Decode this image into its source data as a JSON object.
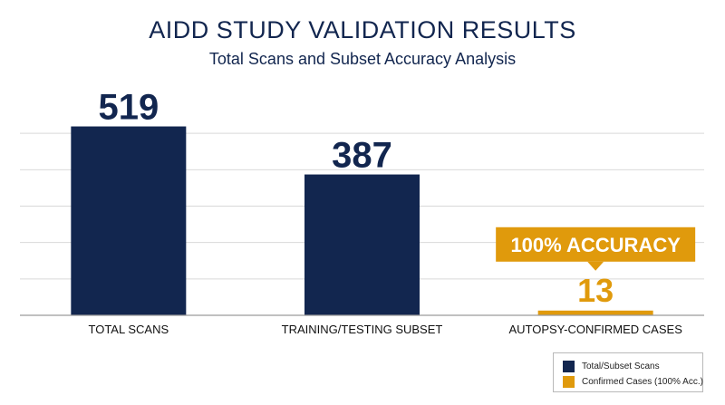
{
  "colors": {
    "primary": "#12264f",
    "accent": "#e09a0c",
    "grid": "#d9d9d9",
    "text": "#12264f"
  },
  "chart_data": {
    "type": "bar",
    "title": "AIDD STUDY VALIDATION RESULTS",
    "subtitle": "Total Scans and Subset Accuracy Analysis",
    "categories": [
      "TOTAL SCANS",
      "TRAINING/TESTING SUBSET",
      "AUTOPSY-CONFIRMED CASES"
    ],
    "values": [
      519,
      387,
      13
    ],
    "bar_colors": [
      "#12264f",
      "#12264f",
      "#e09a0c"
    ],
    "data_labels": [
      "519",
      "387",
      "13"
    ],
    "ylim": [
      0,
      600
    ],
    "grid": true,
    "annotation": {
      "category": "AUTOPSY-CONFIRMED CASES",
      "text": "100% ACCURACY"
    },
    "legend": {
      "position": "bottom-right",
      "items": [
        {
          "label": "Total/Subset Scans",
          "color": "#12264f"
        },
        {
          "label": "Confirmed Cases (100% Acc.)",
          "color": "#e09a0c"
        }
      ]
    }
  }
}
